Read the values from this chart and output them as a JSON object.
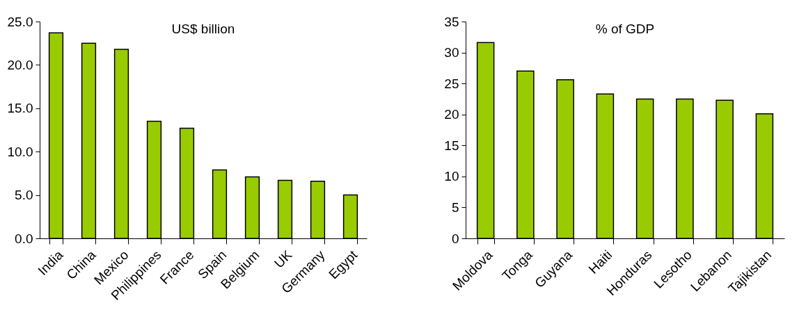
{
  "chart_data": [
    {
      "type": "bar",
      "title": "US$ billion",
      "categories": [
        "India",
        "China",
        "Mexico",
        "Philippines",
        "France",
        "Spain",
        "Belgium",
        "UK",
        "Germany",
        "Egypt"
      ],
      "values": [
        23.7,
        22.5,
        21.8,
        13.5,
        12.7,
        7.9,
        7.1,
        6.7,
        6.6,
        5.0
      ],
      "color": "#99cc00",
      "ylim": [
        0,
        25
      ],
      "yticks": [
        {
          "value": 0,
          "label": "0.0"
        },
        {
          "value": 5,
          "label": "5.0"
        },
        {
          "value": 10,
          "label": "10.0"
        },
        {
          "value": 15,
          "label": "15.0"
        },
        {
          "value": 20,
          "label": "20.0"
        },
        {
          "value": 25,
          "label": "25.0"
        }
      ],
      "grid": false
    },
    {
      "type": "bar",
      "title": "% of GDP",
      "categories": [
        "Moldova",
        "Tonga",
        "Guyana",
        "Haiti",
        "Honduras",
        "Lesotho",
        "Lebanon",
        "Tajikistan"
      ],
      "values": [
        31.6,
        27.0,
        25.6,
        23.3,
        22.5,
        22.5,
        22.3,
        20.1
      ],
      "color": "#99cc00",
      "ylim": [
        0,
        35
      ],
      "yticks": [
        0,
        5,
        10,
        15,
        20,
        25,
        30,
        35
      ],
      "grid": false
    }
  ]
}
